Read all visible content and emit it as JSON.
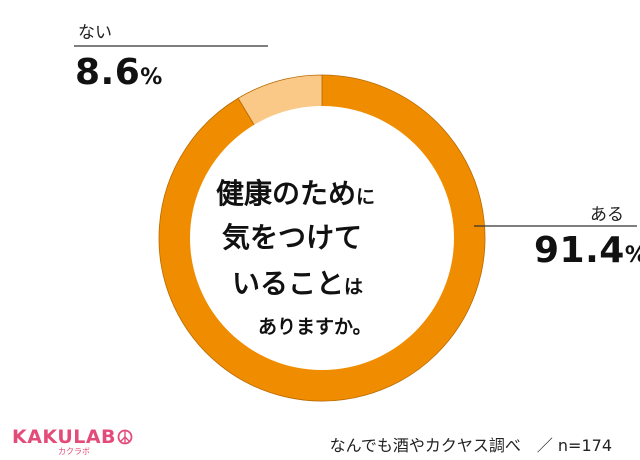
{
  "chart_data": {
    "type": "pie",
    "style": "donut",
    "title": "健康のために気をつけていることはありますか。",
    "categories": [
      "ある",
      "ない"
    ],
    "values": [
      91.4,
      8.6
    ],
    "value_labels": [
      "91.4",
      "8.6"
    ],
    "unit": "%",
    "colors": [
      "#f08c00",
      "#fbc987"
    ],
    "n_label": "n=174"
  },
  "center": {
    "l1_main": "健康のため",
    "l1_small": "に",
    "l2": "気をつけて",
    "l3_main": "いること",
    "l3_small": "は",
    "l4": "ありますか。"
  },
  "labels": {
    "yes_name": "ある",
    "yes_value": "91.4",
    "no_name": "ない",
    "no_value": "8.6",
    "pct": "%"
  },
  "logo": {
    "brand": "KAKULAB",
    "brand_sub": "カクラボ"
  },
  "footer": {
    "text": "なんでも酒やカクヤス調べ　／ n=174"
  }
}
